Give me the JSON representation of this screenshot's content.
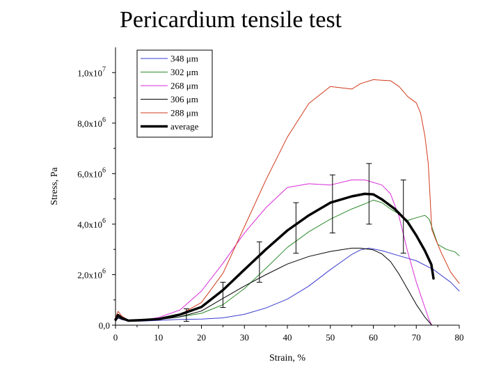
{
  "slide": {
    "title": "Pericardium tensile test"
  },
  "chart_data": {
    "type": "line",
    "title": "",
    "xlabel": "Strain, %",
    "ylabel": "Stress, Pa",
    "xlim": [
      0,
      80
    ],
    "ylim": [
      0,
      11000000
    ],
    "x_ticks": [
      0,
      10,
      20,
      30,
      40,
      50,
      60,
      70,
      80
    ],
    "y_ticks": [
      {
        "value": 0,
        "mantissa": "0,0",
        "exponent": ""
      },
      {
        "value": 2000000,
        "mantissa": "2,0x10",
        "exponent": "6"
      },
      {
        "value": 4000000,
        "mantissa": "4,0x10",
        "exponent": "6"
      },
      {
        "value": 6000000,
        "mantissa": "6,0x10",
        "exponent": "6"
      },
      {
        "value": 8000000,
        "mantissa": "8,0x10",
        "exponent": "6"
      },
      {
        "value": 10000000,
        "mantissa": "1,0x10",
        "exponent": "7"
      }
    ],
    "legend_position": "top-left",
    "series": [
      {
        "name": "348 μm",
        "color": "#3a3ad0",
        "width": 1,
        "x": [
          0,
          0.6,
          1.5,
          3,
          6,
          10,
          15,
          20,
          25,
          30,
          35,
          40,
          45,
          50,
          55,
          57,
          59,
          62,
          66,
          70,
          74,
          78,
          80
        ],
        "y": [
          150000,
          280000,
          220000,
          160000,
          160000,
          190000,
          230000,
          240000,
          290000,
          430000,
          680000,
          1030000,
          1550000,
          2200000,
          2800000,
          2980000,
          3050000,
          2950000,
          2750000,
          2550000,
          2200000,
          1700000,
          1350000
        ]
      },
      {
        "name": "302 μm",
        "color": "#2a8a2a",
        "width": 1,
        "x": [
          0,
          0.6,
          1.5,
          3,
          6,
          10,
          15,
          20,
          25,
          30,
          35,
          40,
          45,
          50,
          55,
          58,
          60,
          62,
          64,
          66,
          68,
          70,
          72,
          73,
          74,
          75,
          77,
          79,
          80
        ],
        "y": [
          200000,
          350000,
          250000,
          170000,
          190000,
          230000,
          330000,
          470000,
          810000,
          1450000,
          2250000,
          3080000,
          3700000,
          4200000,
          4600000,
          4800000,
          4950000,
          4850000,
          4600000,
          4400000,
          4150000,
          4250000,
          4350000,
          4200000,
          3700000,
          3200000,
          3000000,
          2900000,
          2750000
        ]
      },
      {
        "name": "268 μm",
        "color": "#d82ad8",
        "width": 1,
        "x": [
          0,
          0.6,
          1.5,
          3,
          6,
          10,
          15,
          20,
          25,
          30,
          35,
          40,
          45,
          50,
          55,
          58,
          62,
          64,
          66,
          68,
          70,
          72,
          73,
          73.6
        ],
        "y": [
          200000,
          350000,
          250000,
          180000,
          200000,
          300000,
          600000,
          1350000,
          2450000,
          3650000,
          4650000,
          5450000,
          5600000,
          5550000,
          5750000,
          5750000,
          5550000,
          5200000,
          4300000,
          2900000,
          1700000,
          700000,
          200000,
          0
        ]
      },
      {
        "name": "306 μm",
        "color": "#000000",
        "width": 1,
        "x": [
          0,
          0.6,
          1.5,
          3,
          6,
          10,
          15,
          20,
          25,
          30,
          35,
          40,
          45,
          50,
          55,
          57,
          60,
          62,
          64,
          66,
          68,
          70,
          72,
          73.6
        ],
        "y": [
          150000,
          300000,
          230000,
          160000,
          180000,
          220000,
          330000,
          560000,
          1060000,
          1550000,
          2000000,
          2420000,
          2720000,
          2920000,
          3050000,
          3050000,
          2980000,
          2820000,
          2520000,
          2020000,
          1420000,
          820000,
          320000,
          0
        ]
      },
      {
        "name": "288 μm",
        "color": "#d03a1a",
        "width": 1,
        "x": [
          0,
          0.6,
          1.5,
          3,
          6,
          10,
          15,
          20,
          25,
          30,
          35,
          40,
          45,
          50,
          55,
          57,
          60,
          62,
          64,
          66,
          68,
          70,
          71,
          72,
          72.8,
          73.2,
          73.6,
          74.5,
          76,
          78,
          80
        ],
        "y": [
          300000,
          550000,
          350000,
          200000,
          200000,
          260000,
          420000,
          900000,
          2050000,
          3900000,
          5750000,
          7450000,
          8780000,
          9450000,
          9350000,
          9560000,
          9720000,
          9700000,
          9680000,
          9450000,
          9050000,
          8800000,
          8400000,
          7500000,
          6400000,
          5100000,
          3800000,
          3400000,
          2800000,
          2100000,
          1650000
        ]
      },
      {
        "name": "average",
        "color": "#000000",
        "width": 3.5,
        "x": [
          0,
          0.6,
          1.5,
          3,
          6,
          10,
          15,
          20,
          25,
          30,
          35,
          40,
          45,
          50,
          55,
          58,
          60,
          62,
          65,
          68,
          70,
          72,
          73.5,
          74
        ],
        "y": [
          220000,
          400000,
          280000,
          180000,
          200000,
          240000,
          420000,
          720000,
          1390000,
          2200000,
          3000000,
          3750000,
          4350000,
          4850000,
          5100000,
          5200000,
          5180000,
          4980000,
          4600000,
          4080000,
          3550000,
          2950000,
          2400000,
          1850000
        ]
      }
    ],
    "error_bars": [
      {
        "x": 16.5,
        "y": 400000,
        "err": 250000
      },
      {
        "x": 25,
        "y": 1200000,
        "err": 500000
      },
      {
        "x": 33.5,
        "y": 2500000,
        "err": 800000
      },
      {
        "x": 42,
        "y": 3850000,
        "err": 1000000
      },
      {
        "x": 50.5,
        "y": 4800000,
        "err": 1150000
      },
      {
        "x": 59,
        "y": 5200000,
        "err": 1200000
      },
      {
        "x": 67,
        "y": 4300000,
        "err": 1450000
      }
    ]
  }
}
